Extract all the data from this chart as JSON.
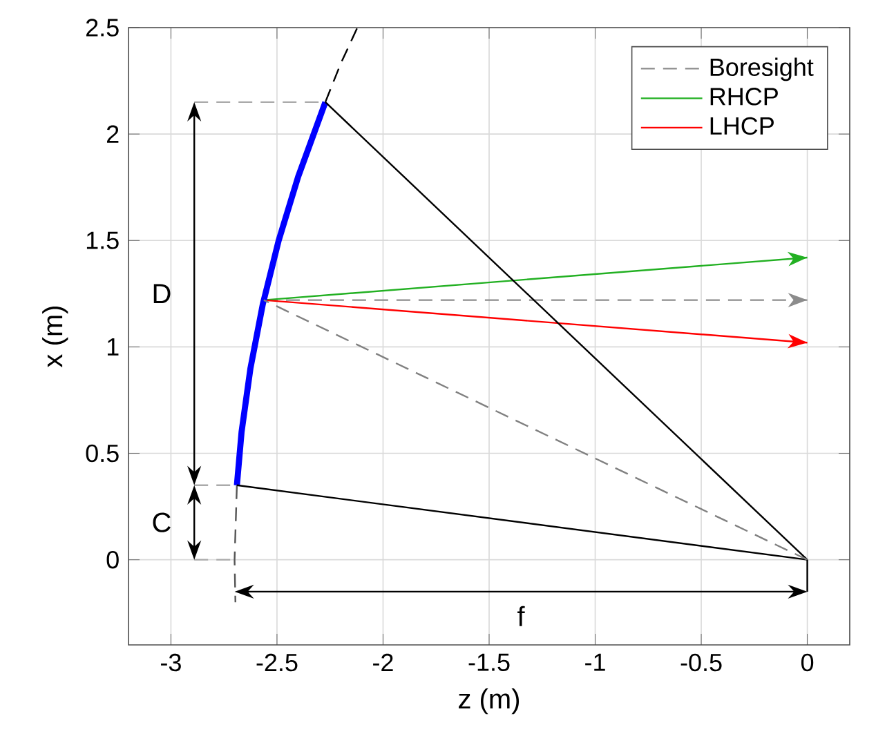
{
  "chart_data": {
    "type": "line",
    "xlabel": "z (m)",
    "ylabel": "x (m)",
    "xlim": [
      -3.2,
      0.2
    ],
    "ylim": [
      -0.4,
      2.5
    ],
    "xticks": [
      -3,
      -2.5,
      -2,
      -1.5,
      -1,
      -0.5,
      0
    ],
    "yticks": [
      0,
      0.5,
      1,
      1.5,
      2,
      2.5
    ],
    "grid": true,
    "legend": "top right",
    "series": [
      {
        "name": "Boresight",
        "color": "#8c8c8c",
        "line_style": "dashed",
        "x": [
          -2.562,
          0
        ],
        "values": [
          1.22,
          1.22
        ]
      },
      {
        "name": "RHCP",
        "color": "#22b022",
        "x": [
          -2.562,
          0
        ],
        "values": [
          1.22,
          1.42
        ]
      },
      {
        "name": "LHCP",
        "color": "#ff0000",
        "x": [
          -2.562,
          0
        ],
        "values": [
          1.22,
          1.02
        ]
      },
      {
        "color": "#0000ff",
        "x": [
          -2.689,
          -2.667,
          -2.625,
          -2.567,
          -2.492,
          -2.4,
          -2.272
        ],
        "values": [
          0.35,
          0.6,
          0.9,
          1.2,
          1.5,
          1.8,
          2.15
        ]
      },
      {
        "color": "#000000",
        "line_style": "dashed",
        "x": [
          -2.272,
          -2.2,
          -2.121
        ],
        "values": [
          2.15,
          2.33,
          2.5
        ]
      },
      {
        "color": "#555555",
        "line_style": "dashed",
        "x": [
          -2.689,
          -2.7,
          -2.696
        ],
        "values": [
          0.35,
          0,
          -0.2
        ]
      },
      {
        "color": "#000000",
        "x": [
          0,
          -2.272
        ],
        "values": [
          0,
          2.15
        ]
      },
      {
        "color": "#000000",
        "x": [
          0,
          -2.689
        ],
        "values": [
          0,
          0.35
        ]
      },
      {
        "color": "#808080",
        "line_style": "dashed",
        "x": [
          0,
          -2.562
        ],
        "values": [
          0,
          1.22
        ]
      },
      {
        "color": "#000000",
        "x": [
          0,
          0
        ],
        "values": [
          0,
          -0.15
        ]
      },
      {
        "color": "#aaaaaa",
        "line_style": "dashed",
        "x": [
          -2.89,
          -2.272
        ],
        "values": [
          2.15,
          2.15
        ]
      },
      {
        "color": "#aaaaaa",
        "line_style": "dashed",
        "x": [
          -2.89,
          -2.689
        ],
        "values": [
          0.35,
          0.35
        ]
      },
      {
        "color": "#aaaaaa",
        "line_style": "dashed",
        "x": [
          -2.89,
          -2.7
        ],
        "values": [
          0,
          0
        ]
      }
    ],
    "annotations": [
      "D",
      "C",
      "f"
    ]
  }
}
